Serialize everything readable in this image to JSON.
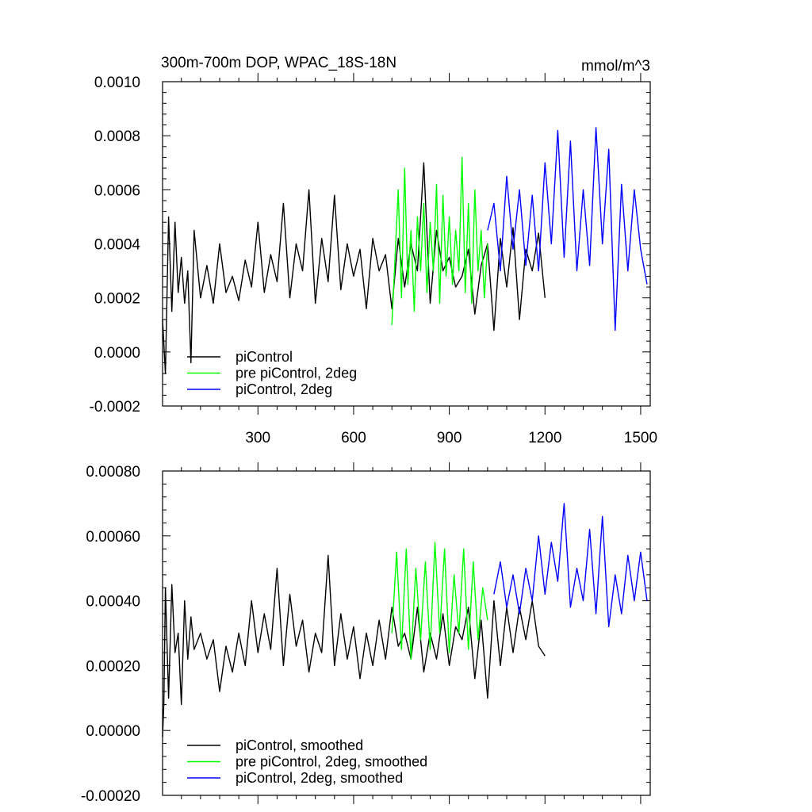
{
  "chart_data": [
    {
      "type": "line",
      "title": "300m-700m DOP, WPAC_18S-18N",
      "units": "mmol/m^3",
      "xlim": [
        1,
        1530
      ],
      "ylim": [
        -0.0002,
        0.001
      ],
      "xticks": [
        300,
        600,
        900,
        1200,
        1500
      ],
      "xtick_labels": [
        "300",
        "600",
        "900",
        "1200",
        "1500"
      ],
      "yticks": [
        -0.0002,
        0,
        0.0002,
        0.0004,
        0.0006,
        0.0008,
        0.001
      ],
      "ytick_labels": [
        "-0.0002",
        "0.0000",
        "0.0002",
        "0.0004",
        "0.0006",
        "0.0008",
        "0.0010"
      ],
      "legend": [
        "piControl",
        "pre piControl, 2deg",
        "piControl, 2deg"
      ],
      "series": [
        {
          "name": "piControl",
          "color": "#000000",
          "x": [
            1,
            10,
            20,
            30,
            40,
            50,
            60,
            70,
            80,
            90,
            100,
            120,
            140,
            160,
            180,
            200,
            220,
            240,
            260,
            280,
            300,
            320,
            340,
            360,
            380,
            400,
            420,
            440,
            460,
            480,
            500,
            520,
            540,
            560,
            580,
            600,
            620,
            640,
            660,
            680,
            700,
            720,
            740,
            760,
            780,
            800,
            820,
            840,
            860,
            880,
            900,
            920,
            940,
            960,
            980,
            1000,
            1020,
            1040,
            1060,
            1080,
            1100,
            1120,
            1140,
            1160,
            1180,
            1200
          ],
          "values": [
            0.00012,
            -8e-05,
            0.0005,
            0.00015,
            0.00048,
            0.00022,
            0.00035,
            0.00018,
            0.0003,
            -4e-05,
            0.00045,
            0.0002,
            0.00032,
            0.00018,
            0.0004,
            0.00022,
            0.00028,
            0.00019,
            0.00034,
            0.00024,
            0.00048,
            0.00022,
            0.00036,
            0.00026,
            0.00055,
            0.0002,
            0.0004,
            0.0003,
            0.0006,
            0.00018,
            0.00042,
            0.00026,
            0.00058,
            0.00023,
            0.0004,
            0.00028,
            0.00038,
            0.00016,
            0.00042,
            0.0003,
            0.00036,
            0.00016,
            0.00042,
            0.00024,
            0.0004,
            0.0003,
            0.0007,
            0.00018,
            0.00045,
            0.0003,
            0.00035,
            0.00024,
            0.00028,
            0.00038,
            0.00014,
            0.00032,
            0.0004,
            8e-05,
            0.00042,
            0.00024,
            0.00046,
            0.00012,
            0.00038,
            0.0003,
            0.00044,
            0.0002
          ]
        },
        {
          "name": "pre piControl, 2deg",
          "color": "#00ff00",
          "x": [
            720,
            730,
            740,
            750,
            760,
            770,
            780,
            790,
            800,
            810,
            820,
            830,
            840,
            850,
            860,
            870,
            880,
            890,
            900,
            910,
            920,
            930,
            940,
            950,
            960,
            970,
            980,
            990,
            1000,
            1010,
            1020
          ],
          "values": [
            0.0001,
            0.00035,
            0.0006,
            0.0002,
            0.00068,
            0.00025,
            0.00045,
            0.00015,
            0.0005,
            0.0003,
            0.00055,
            0.00022,
            0.00048,
            0.0003,
            0.00062,
            0.00018,
            0.00058,
            0.00028,
            0.0005,
            0.00025,
            0.00045,
            0.0003,
            0.00072,
            0.00022,
            0.00055,
            0.00018,
            0.0006,
            0.0003,
            0.00045,
            0.0002,
            0.0004
          ]
        },
        {
          "name": "piControl, 2deg",
          "color": "#0000ff",
          "x": [
            1020,
            1040,
            1060,
            1080,
            1100,
            1120,
            1140,
            1160,
            1180,
            1200,
            1220,
            1240,
            1260,
            1280,
            1300,
            1320,
            1340,
            1360,
            1380,
            1400,
            1420,
            1440,
            1460,
            1480,
            1500,
            1520
          ],
          "values": [
            0.00045,
            0.00055,
            0.0003,
            0.00065,
            0.00038,
            0.0006,
            0.00032,
            0.00058,
            0.0003,
            0.0007,
            0.0004,
            0.00082,
            0.00035,
            0.00078,
            0.0003,
            0.0006,
            0.00032,
            0.00083,
            0.0004,
            0.00075,
            8e-05,
            0.00062,
            0.0003,
            0.0006,
            0.00038,
            0.00025
          ]
        }
      ]
    },
    {
      "type": "line",
      "title": "",
      "xlim": [
        1,
        1530
      ],
      "ylim": [
        -0.0002,
        0.0008
      ],
      "xticks": [
        300,
        600,
        900,
        1200,
        1500
      ],
      "yticks": [
        -0.0002,
        0,
        0.0002,
        0.0004,
        0.0006,
        0.0008
      ],
      "ytick_labels": [
        "-0.00020",
        "0.00000",
        "0.00020",
        "0.00040",
        "0.00060",
        "0.00080"
      ],
      "legend": [
        "piControl, smoothed",
        "pre piControl, 2deg, smoothed",
        "piControl, 2deg, smoothed"
      ],
      "series": [
        {
          "name": "piControl, smoothed",
          "color": "#000000",
          "x": [
            1,
            5,
            10,
            20,
            30,
            40,
            50,
            60,
            70,
            80,
            90,
            100,
            120,
            140,
            160,
            180,
            200,
            220,
            240,
            260,
            280,
            300,
            320,
            340,
            360,
            380,
            400,
            420,
            440,
            460,
            480,
            500,
            520,
            540,
            560,
            580,
            600,
            620,
            640,
            660,
            680,
            700,
            720,
            740,
            760,
            780,
            800,
            820,
            840,
            860,
            880,
            900,
            920,
            940,
            960,
            980,
            1000,
            1020,
            1040,
            1060,
            1080,
            1100,
            1120,
            1140,
            1160,
            1180,
            1200
          ],
          "values": [
            -2e-05,
            8e-05,
            0.00044,
            0.0001,
            0.00045,
            0.00024,
            0.0003,
            8e-05,
            0.0004,
            0.00022,
            0.00035,
            0.00025,
            0.0003,
            0.00022,
            0.00028,
            0.00012,
            0.00026,
            0.00018,
            0.0003,
            0.0002,
            0.0004,
            0.00024,
            0.00036,
            0.00025,
            0.0005,
            0.0002,
            0.00042,
            0.00026,
            0.00034,
            0.00018,
            0.0003,
            0.00024,
            0.00054,
            0.0002,
            0.00036,
            0.00022,
            0.00032,
            0.00016,
            0.0003,
            0.0002,
            0.00034,
            0.00022,
            0.00038,
            0.00026,
            0.0003,
            0.00022,
            0.00038,
            0.00018,
            0.0003,
            0.00022,
            0.00036,
            0.0002,
            0.00032,
            0.00028,
            0.00038,
            0.00016,
            0.00034,
            0.0001,
            0.0004,
            0.0002,
            0.00038,
            0.00024,
            0.00038,
            0.00028,
            0.0004,
            0.00026,
            0.00023
          ]
        },
        {
          "name": "pre piControl, 2deg, smoothed",
          "color": "#00ff00",
          "x": [
            720,
            735,
            750,
            765,
            780,
            795,
            810,
            825,
            840,
            855,
            870,
            885,
            900,
            915,
            930,
            945,
            960,
            975,
            990,
            1005,
            1020
          ],
          "values": [
            0.0003,
            0.00055,
            0.00025,
            0.00056,
            0.00022,
            0.0005,
            0.00028,
            0.00052,
            0.00025,
            0.00058,
            0.0003,
            0.00056,
            0.00024,
            0.00048,
            0.0003,
            0.00056,
            0.00025,
            0.00052,
            0.00028,
            0.00044,
            0.00034
          ]
        },
        {
          "name": "piControl, 2deg, smoothed",
          "color": "#0000ff",
          "x": [
            1040,
            1060,
            1080,
            1100,
            1120,
            1140,
            1160,
            1180,
            1200,
            1220,
            1240,
            1260,
            1280,
            1300,
            1320,
            1340,
            1360,
            1380,
            1400,
            1420,
            1440,
            1460,
            1480,
            1500,
            1520
          ],
          "values": [
            0.00042,
            0.00052,
            0.00038,
            0.00048,
            0.00036,
            0.0005,
            0.0004,
            0.0006,
            0.00042,
            0.00058,
            0.00046,
            0.0007,
            0.00038,
            0.0005,
            0.0004,
            0.00062,
            0.00036,
            0.00066,
            0.00032,
            0.00048,
            0.00036,
            0.00054,
            0.0004,
            0.00055,
            0.0004
          ]
        }
      ]
    }
  ]
}
